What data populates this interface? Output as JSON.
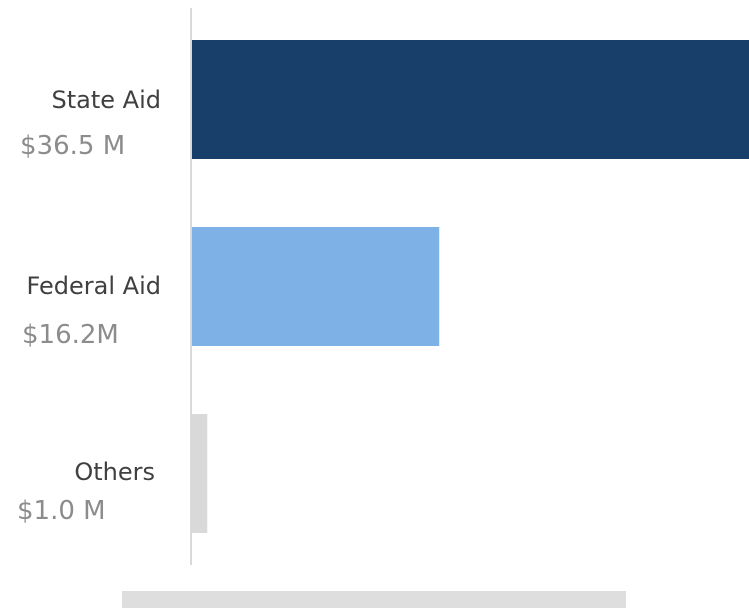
{
  "chart_data": {
    "type": "bar",
    "orientation": "horizontal",
    "categories": [
      "State Aid",
      "Federal Aid",
      "Others"
    ],
    "values": [
      36.5,
      16.2,
      1.0
    ],
    "value_labels": [
      "$36.5 M",
      "$16.2M",
      "$1.0 M"
    ],
    "unit": "$M",
    "colors": [
      "#173f6a",
      "#7eb1e6",
      "#d9d9d9"
    ],
    "xlim": [
      0,
      36.5
    ],
    "grid": false,
    "legend": "none"
  }
}
